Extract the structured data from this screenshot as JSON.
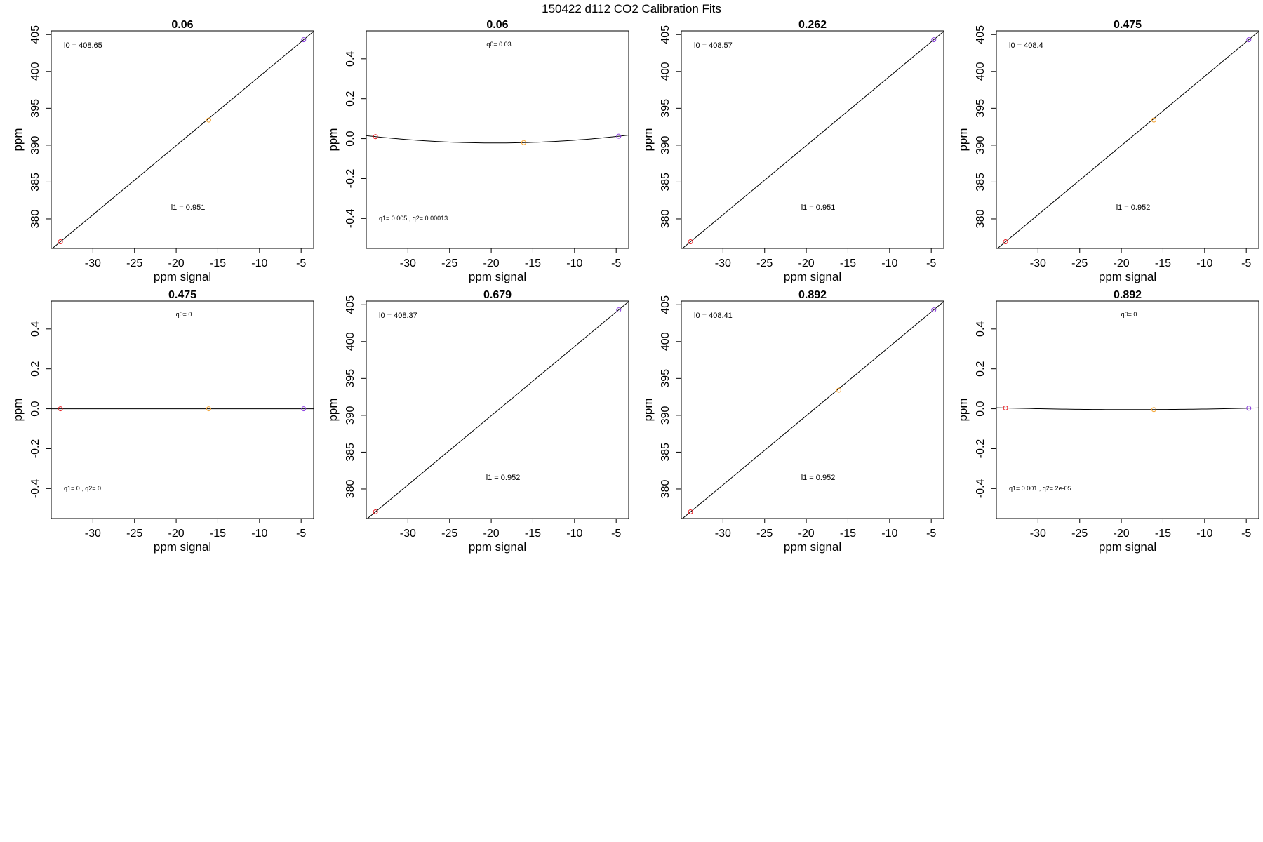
{
  "figure_title": "150422   d112   CO2 Calibration Fits",
  "chart_data": [
    {
      "type": "scatter",
      "fit": "linear",
      "title": "0.06",
      "xlabel": "ppm signal",
      "ylabel": "ppm",
      "xlim": [
        -35,
        -3.5
      ],
      "ylim": [
        376,
        405.5
      ],
      "xticks": [
        -30,
        -25,
        -20,
        -15,
        -10,
        -5
      ],
      "xtick_labels": [
        "-30",
        "-25",
        "-20",
        "-15",
        "-10",
        "-5"
      ],
      "yticks": [
        380,
        385,
        390,
        395,
        400,
        405
      ],
      "ytick_labels": [
        "380",
        "385",
        "390",
        "395",
        "400",
        "405"
      ],
      "points": [
        {
          "x": -33.9,
          "y": 376.9,
          "color": "#e8191e"
        },
        {
          "x": -16.1,
          "y": 393.4,
          "color": "#f5a637"
        },
        {
          "x": -4.7,
          "y": 404.3,
          "color": "#8a3ce0"
        }
      ],
      "fit_coefficients": {
        "intercept": 408.65,
        "slope": 0.951
      },
      "annotations": [
        {
          "text": "l0 =  408.65",
          "position": "top-left"
        },
        {
          "text": "l1 =  0.951",
          "position": "bottom-center"
        }
      ]
    },
    {
      "type": "scatter",
      "fit": "quadratic",
      "title": "0.06",
      "xlabel": "ppm signal",
      "ylabel": "ppm",
      "xlim": [
        -35,
        -3.5
      ],
      "ylim": [
        -0.55,
        0.54
      ],
      "xticks": [
        -30,
        -25,
        -20,
        -15,
        -10,
        -5
      ],
      "xtick_labels": [
        "-30",
        "-25",
        "-20",
        "-15",
        "-10",
        "-5"
      ],
      "yticks": [
        -0.4,
        -0.2,
        0.0,
        0.2,
        0.4
      ],
      "ytick_labels": [
        "-0.4",
        "-0.2",
        "0.0",
        "0.2",
        "0.4"
      ],
      "points": [
        {
          "x": -33.9,
          "y": 0.01,
          "color": "#e8191e"
        },
        {
          "x": -16.1,
          "y": -0.02,
          "color": "#f5a637"
        },
        {
          "x": -4.7,
          "y": 0.012,
          "color": "#8a3ce0"
        }
      ],
      "fit_coefficients": {
        "q0": 0.03,
        "q1": 0.005,
        "q2": 0.00013
      },
      "annotations": [
        {
          "text": "q0= 0.03",
          "position": "top-center"
        },
        {
          "text": "q1= 0.005 , q2= 0.00013",
          "position": "bottom-left"
        }
      ]
    },
    {
      "type": "scatter",
      "fit": "linear",
      "title": "0.262",
      "xlabel": "ppm signal",
      "ylabel": "ppm",
      "xlim": [
        -35,
        -3.5
      ],
      "ylim": [
        376,
        405.5
      ],
      "xticks": [
        -30,
        -25,
        -20,
        -15,
        -10,
        -5
      ],
      "xtick_labels": [
        "-30",
        "-25",
        "-20",
        "-15",
        "-10",
        "-5"
      ],
      "yticks": [
        380,
        385,
        390,
        395,
        400,
        405
      ],
      "ytick_labels": [
        "380",
        "385",
        "390",
        "395",
        "400",
        "405"
      ],
      "points": [
        {
          "x": -33.9,
          "y": 376.9,
          "color": "#e8191e"
        },
        {
          "x": -4.7,
          "y": 404.3,
          "color": "#8a3ce0"
        }
      ],
      "fit_coefficients": {
        "intercept": 408.57,
        "slope": 0.951
      },
      "annotations": [
        {
          "text": "l0 =  408.57",
          "position": "top-left"
        },
        {
          "text": "l1 =  0.951",
          "position": "bottom-center"
        }
      ]
    },
    {
      "type": "scatter",
      "fit": "linear",
      "title": "0.475",
      "xlabel": "ppm signal",
      "ylabel": "ppm",
      "xlim": [
        -35,
        -3.5
      ],
      "ylim": [
        376,
        405.5
      ],
      "xticks": [
        -30,
        -25,
        -20,
        -15,
        -10,
        -5
      ],
      "xtick_labels": [
        "-30",
        "-25",
        "-20",
        "-15",
        "-10",
        "-5"
      ],
      "yticks": [
        380,
        385,
        390,
        395,
        400,
        405
      ],
      "ytick_labels": [
        "380",
        "385",
        "390",
        "395",
        "400",
        "405"
      ],
      "points": [
        {
          "x": -33.9,
          "y": 376.9,
          "color": "#e8191e"
        },
        {
          "x": -16.1,
          "y": 393.4,
          "color": "#f5a637"
        },
        {
          "x": -4.7,
          "y": 404.3,
          "color": "#8a3ce0"
        }
      ],
      "fit_coefficients": {
        "intercept": 408.4,
        "slope": 0.952
      },
      "annotations": [
        {
          "text": "l0 =  408.4",
          "position": "top-left"
        },
        {
          "text": "l1 =  0.952",
          "position": "bottom-center"
        }
      ]
    },
    {
      "type": "scatter",
      "fit": "quadratic",
      "title": "0.475",
      "xlabel": "ppm signal",
      "ylabel": "ppm",
      "xlim": [
        -35,
        -3.5
      ],
      "ylim": [
        -0.55,
        0.54
      ],
      "xticks": [
        -30,
        -25,
        -20,
        -15,
        -10,
        -5
      ],
      "xtick_labels": [
        "-30",
        "-25",
        "-20",
        "-15",
        "-10",
        "-5"
      ],
      "yticks": [
        -0.4,
        -0.2,
        0.0,
        0.2,
        0.4
      ],
      "ytick_labels": [
        "-0.4",
        "-0.2",
        "0.0",
        "0.2",
        "0.4"
      ],
      "points": [
        {
          "x": -33.9,
          "y": 0.0,
          "color": "#e8191e"
        },
        {
          "x": -16.1,
          "y": 0.0,
          "color": "#f5a637"
        },
        {
          "x": -4.7,
          "y": 0.0,
          "color": "#8a3ce0"
        }
      ],
      "fit_coefficients": {
        "q0": 0,
        "q1": 0,
        "q2": 0
      },
      "annotations": [
        {
          "text": "q0= 0",
          "position": "top-center"
        },
        {
          "text": "q1= 0 , q2= 0",
          "position": "bottom-left"
        }
      ]
    },
    {
      "type": "scatter",
      "fit": "linear",
      "title": "0.679",
      "xlabel": "ppm signal",
      "ylabel": "ppm",
      "xlim": [
        -35,
        -3.5
      ],
      "ylim": [
        376,
        405.5
      ],
      "xticks": [
        -30,
        -25,
        -20,
        -15,
        -10,
        -5
      ],
      "xtick_labels": [
        "-30",
        "-25",
        "-20",
        "-15",
        "-10",
        "-5"
      ],
      "yticks": [
        380,
        385,
        390,
        395,
        400,
        405
      ],
      "ytick_labels": [
        "380",
        "385",
        "390",
        "395",
        "400",
        "405"
      ],
      "points": [
        {
          "x": -33.9,
          "y": 376.9,
          "color": "#e8191e"
        },
        {
          "x": -4.7,
          "y": 404.3,
          "color": "#8a3ce0"
        }
      ],
      "fit_coefficients": {
        "intercept": 408.37,
        "slope": 0.952
      },
      "annotations": [
        {
          "text": "l0 =  408.37",
          "position": "top-left"
        },
        {
          "text": "l1 =  0.952",
          "position": "bottom-center"
        }
      ]
    },
    {
      "type": "scatter",
      "fit": "linear",
      "title": "0.892",
      "xlabel": "ppm signal",
      "ylabel": "ppm",
      "xlim": [
        -35,
        -3.5
      ],
      "ylim": [
        376,
        405.5
      ],
      "xticks": [
        -30,
        -25,
        -20,
        -15,
        -10,
        -5
      ],
      "xtick_labels": [
        "-30",
        "-25",
        "-20",
        "-15",
        "-10",
        "-5"
      ],
      "yticks": [
        380,
        385,
        390,
        395,
        400,
        405
      ],
      "ytick_labels": [
        "380",
        "385",
        "390",
        "395",
        "400",
        "405"
      ],
      "points": [
        {
          "x": -33.9,
          "y": 376.9,
          "color": "#e8191e"
        },
        {
          "x": -16.1,
          "y": 393.4,
          "color": "#f5a637"
        },
        {
          "x": -4.7,
          "y": 404.3,
          "color": "#8a3ce0"
        }
      ],
      "fit_coefficients": {
        "intercept": 408.41,
        "slope": 0.952
      },
      "annotations": [
        {
          "text": "l0 =  408.41",
          "position": "top-left"
        },
        {
          "text": "l1 =  0.952",
          "position": "bottom-center"
        }
      ]
    },
    {
      "type": "scatter",
      "fit": "quadratic",
      "title": "0.892",
      "xlabel": "ppm signal",
      "ylabel": "ppm",
      "xlim": [
        -35,
        -3.5
      ],
      "ylim": [
        -0.55,
        0.54
      ],
      "xticks": [
        -30,
        -25,
        -20,
        -15,
        -10,
        -5
      ],
      "xtick_labels": [
        "-30",
        "-25",
        "-20",
        "-15",
        "-10",
        "-5"
      ],
      "yticks": [
        -0.4,
        -0.2,
        0.0,
        0.2,
        0.4
      ],
      "ytick_labels": [
        "-0.4",
        "-0.2",
        "0.0",
        "0.2",
        "0.4"
      ],
      "points": [
        {
          "x": -33.9,
          "y": 0.004,
          "color": "#e8191e"
        },
        {
          "x": -16.1,
          "y": -0.004,
          "color": "#f5a637"
        },
        {
          "x": -4.7,
          "y": 0.003,
          "color": "#8a3ce0"
        }
      ],
      "fit_coefficients": {
        "q0": 0,
        "q1": 0.001,
        "q2": 2e-05
      },
      "annotations": [
        {
          "text": "q0= 0",
          "position": "top-center"
        },
        {
          "text": "q1= 0.001 , q2= 2e-05",
          "position": "bottom-left"
        }
      ]
    }
  ]
}
